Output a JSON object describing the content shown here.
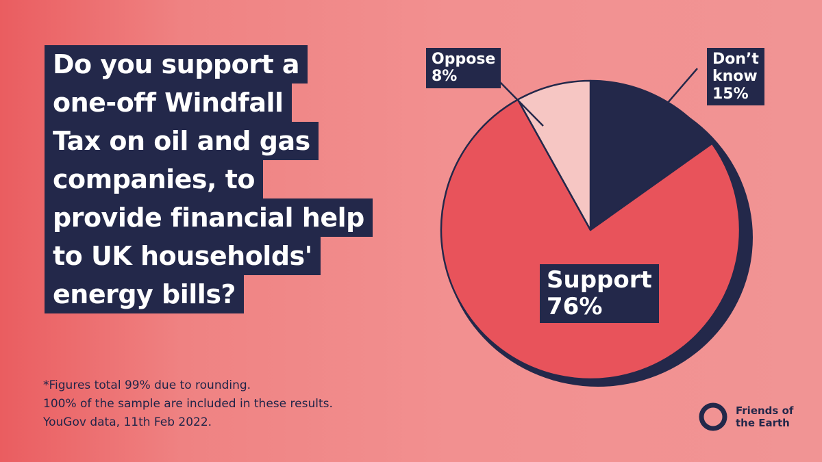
{
  "question": {
    "lines": [
      "Do you support a",
      "one-off Windfall",
      "Tax on oil and gas",
      "companies, to",
      "provide financial help",
      "to UK households'",
      "energy bills?"
    ]
  },
  "chart_data": {
    "type": "pie",
    "slices": [
      {
        "label": "Don’t know",
        "value": 15,
        "value_label": "15%"
      },
      {
        "label": "Support",
        "value": 76,
        "value_label": "76%"
      },
      {
        "label": "Oppose",
        "value": 8,
        "value_label": "8%"
      }
    ]
  },
  "labels": {
    "dont_know": {
      "line1": "Don’t",
      "line2": "know",
      "line3": "15%"
    },
    "oppose": {
      "line1": "Oppose",
      "line2": "8%"
    },
    "support": {
      "line1": "Support",
      "line2": "76%"
    }
  },
  "footnote": {
    "line1": "*Figures total 99% due to rounding.",
    "line2": "100% of the sample are included in these results.",
    "line3": "YouGov data, 11th Feb 2022."
  },
  "logo": {
    "line1": "Friends of",
    "line2": "the Earth"
  },
  "colors": {
    "navy": "#23284a",
    "support": "#e8535b",
    "oppose": "#f6c6c3",
    "background": "#f19090"
  }
}
